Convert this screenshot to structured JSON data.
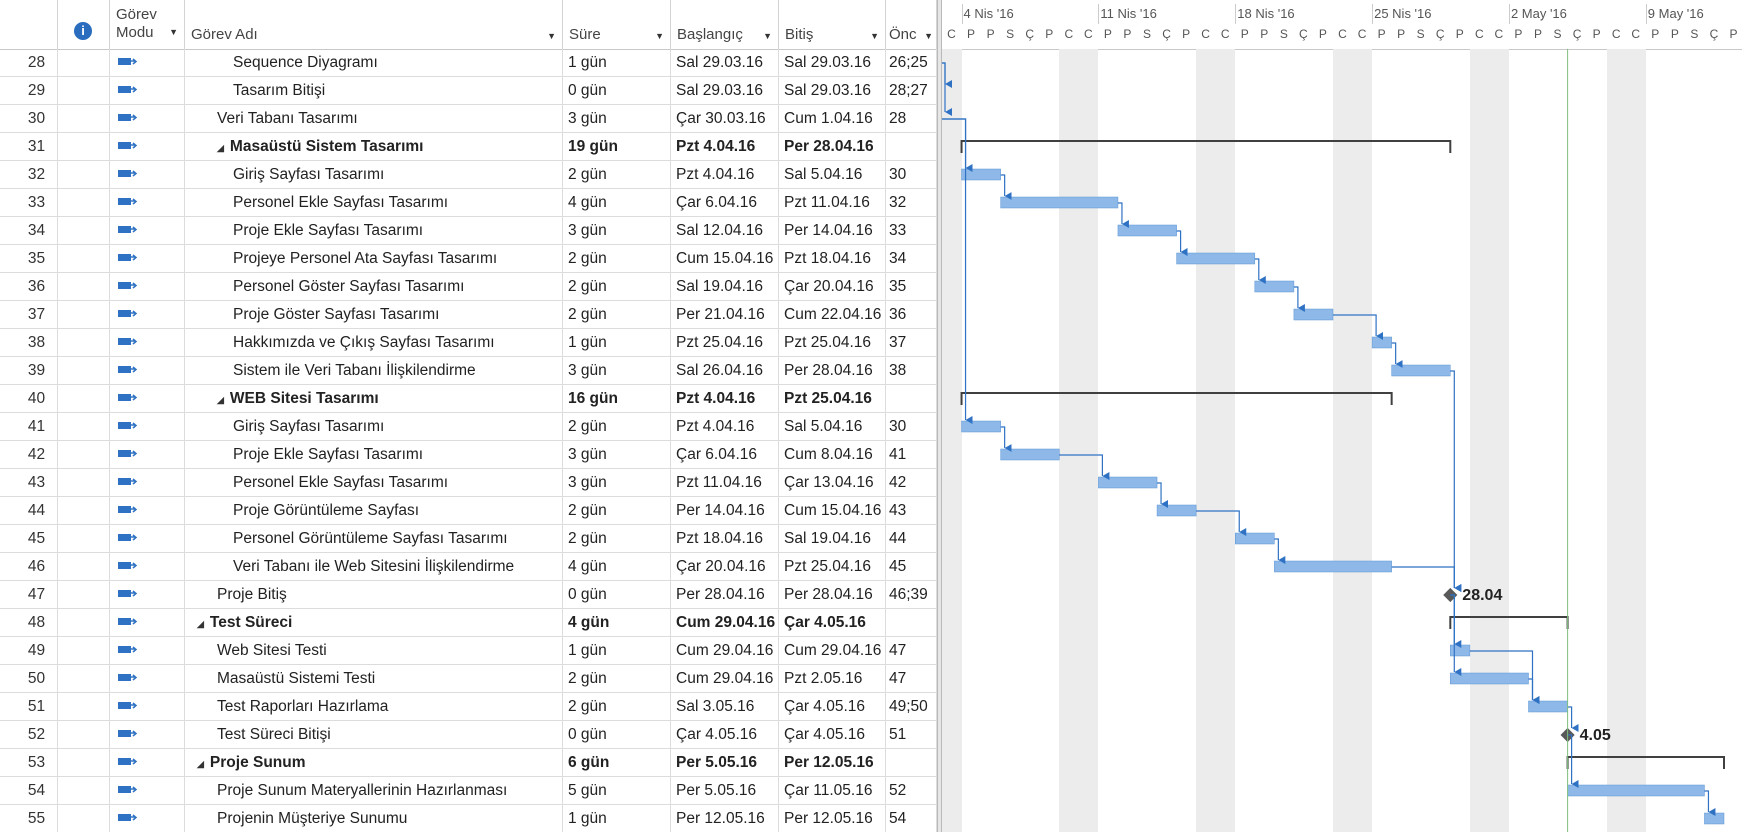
{
  "header": {
    "info_glyph": "i",
    "mode_line1": "Görev",
    "mode_line2": "Modu",
    "name": "Görev Adı",
    "duration": "Süre",
    "start": "Başlangıç",
    "finish": "Bitiş",
    "predecessors": "Önc"
  },
  "timescale": {
    "weeks": [
      "4 Nis '16",
      "11 Nis '16",
      "18 Nis '16",
      "25 Nis '16",
      "2 May '16",
      "9 May '16"
    ],
    "days": [
      "C",
      "P",
      "P",
      "S",
      "Ç",
      "P",
      "C",
      "C",
      "P",
      "P",
      "S",
      "Ç",
      "P",
      "C",
      "C",
      "P",
      "P",
      "S",
      "Ç",
      "P",
      "C",
      "C",
      "P",
      "P",
      "S",
      "Ç",
      "P",
      "C",
      "C",
      "P",
      "P",
      "S",
      "Ç",
      "P",
      "C",
      "C",
      "P",
      "P",
      "S",
      "Ç",
      "P",
      "C"
    ]
  },
  "tasks": [
    {
      "id": "28",
      "name": "Sequence Diyagramı",
      "level": 2,
      "summary": false,
      "duration": "1 gün",
      "start": "Sal 29.03.16",
      "finish": "Sal 29.03.16",
      "pred": "26;25"
    },
    {
      "id": "29",
      "name": "Tasarım Bitişi",
      "level": 2,
      "summary": false,
      "duration": "0 gün",
      "start": "Sal 29.03.16",
      "finish": "Sal 29.03.16",
      "pred": "28;27"
    },
    {
      "id": "30",
      "name": "Veri Tabanı Tasarımı",
      "level": 1,
      "summary": false,
      "duration": "3 gün",
      "start": "Çar 30.03.16",
      "finish": "Cum 1.04.16",
      "pred": "28"
    },
    {
      "id": "31",
      "name": "Masaüstü Sistem Tasarımı",
      "level": 1,
      "summary": true,
      "duration": "19 gün",
      "start": "Pzt 4.04.16",
      "finish": "Per 28.04.16",
      "pred": ""
    },
    {
      "id": "32",
      "name": "Giriş Sayfası Tasarımı",
      "level": 2,
      "summary": false,
      "duration": "2 gün",
      "start": "Pzt 4.04.16",
      "finish": "Sal 5.04.16",
      "pred": "30"
    },
    {
      "id": "33",
      "name": "Personel Ekle Sayfası Tasarımı",
      "level": 2,
      "summary": false,
      "duration": "4 gün",
      "start": "Çar 6.04.16",
      "finish": "Pzt 11.04.16",
      "pred": "32"
    },
    {
      "id": "34",
      "name": "Proje Ekle Sayfası Tasarımı",
      "level": 2,
      "summary": false,
      "duration": "3 gün",
      "start": "Sal 12.04.16",
      "finish": "Per 14.04.16",
      "pred": "33"
    },
    {
      "id": "35",
      "name": "Projeye Personel Ata Sayfası Tasarımı",
      "level": 2,
      "summary": false,
      "duration": "2 gün",
      "start": "Cum 15.04.16",
      "finish": "Pzt 18.04.16",
      "pred": "34"
    },
    {
      "id": "36",
      "name": "Personel Göster Sayfası Tasarımı",
      "level": 2,
      "summary": false,
      "duration": "2 gün",
      "start": "Sal 19.04.16",
      "finish": "Çar 20.04.16",
      "pred": "35"
    },
    {
      "id": "37",
      "name": "Proje Göster Sayfası Tasarımı",
      "level": 2,
      "summary": false,
      "duration": "2 gün",
      "start": "Per 21.04.16",
      "finish": "Cum 22.04.16",
      "pred": "36"
    },
    {
      "id": "38",
      "name": "Hakkımızda ve Çıkış Sayfası Tasarımı",
      "level": 2,
      "summary": false,
      "duration": "1 gün",
      "start": "Pzt 25.04.16",
      "finish": "Pzt 25.04.16",
      "pred": "37"
    },
    {
      "id": "39",
      "name": "Sistem ile Veri Tabanı İlişkilendirme",
      "level": 2,
      "summary": false,
      "duration": "3 gün",
      "start": "Sal 26.04.16",
      "finish": "Per 28.04.16",
      "pred": "38"
    },
    {
      "id": "40",
      "name": "WEB Sitesi Tasarımı",
      "level": 1,
      "summary": true,
      "duration": "16 gün",
      "start": "Pzt 4.04.16",
      "finish": "Pzt 25.04.16",
      "pred": ""
    },
    {
      "id": "41",
      "name": "Giriş Sayfası Tasarımı",
      "level": 2,
      "summary": false,
      "duration": "2 gün",
      "start": "Pzt 4.04.16",
      "finish": "Sal 5.04.16",
      "pred": "30"
    },
    {
      "id": "42",
      "name": "Proje Ekle Sayfası Tasarımı",
      "level": 2,
      "summary": false,
      "duration": "3 gün",
      "start": "Çar 6.04.16",
      "finish": "Cum 8.04.16",
      "pred": "41"
    },
    {
      "id": "43",
      "name": "Personel Ekle Sayfası Tasarımı",
      "level": 2,
      "summary": false,
      "duration": "3 gün",
      "start": "Pzt 11.04.16",
      "finish": "Çar 13.04.16",
      "pred": "42"
    },
    {
      "id": "44",
      "name": "Proje Görüntüleme Sayfası",
      "level": 2,
      "summary": false,
      "duration": "2 gün",
      "start": "Per 14.04.16",
      "finish": "Cum 15.04.16",
      "pred": "43"
    },
    {
      "id": "45",
      "name": "Personel Görüntüleme Sayfası Tasarımı",
      "level": 2,
      "summary": false,
      "duration": "2 gün",
      "start": "Pzt 18.04.16",
      "finish": "Sal 19.04.16",
      "pred": "44"
    },
    {
      "id": "46",
      "name": "Veri Tabanı ile Web Sitesini İlişkilendirme",
      "level": 2,
      "summary": false,
      "duration": "4 gün",
      "start": "Çar 20.04.16",
      "finish": "Pzt 25.04.16",
      "pred": "45"
    },
    {
      "id": "47",
      "name": "Proje Bitiş",
      "level": 1,
      "summary": false,
      "duration": "0 gün",
      "start": "Per 28.04.16",
      "finish": "Per 28.04.16",
      "pred": "46;39"
    },
    {
      "id": "48",
      "name": "Test Süreci",
      "level": 0,
      "summary": true,
      "duration": "4 gün",
      "start": "Cum 29.04.16",
      "finish": "Çar 4.05.16",
      "pred": ""
    },
    {
      "id": "49",
      "name": "Web Sitesi Testi",
      "level": 1,
      "summary": false,
      "duration": "1 gün",
      "start": "Cum 29.04.16",
      "finish": "Cum 29.04.16",
      "pred": "47"
    },
    {
      "id": "50",
      "name": "Masaüstü Sistemi Testi",
      "level": 1,
      "summary": false,
      "duration": "2 gün",
      "start": "Cum 29.04.16",
      "finish": "Pzt 2.05.16",
      "pred": "47"
    },
    {
      "id": "51",
      "name": "Test Raporları Hazırlama",
      "level": 1,
      "summary": false,
      "duration": "2 gün",
      "start": "Sal 3.05.16",
      "finish": "Çar 4.05.16",
      "pred": "49;50"
    },
    {
      "id": "52",
      "name": "Test Süreci Bitişi",
      "level": 1,
      "summary": false,
      "duration": "0 gün",
      "start": "Çar 4.05.16",
      "finish": "Çar 4.05.16",
      "pred": "51"
    },
    {
      "id": "53",
      "name": "Proje Sunum",
      "level": 0,
      "summary": true,
      "duration": "6 gün",
      "start": "Per 5.05.16",
      "finish": "Per 12.05.16",
      "pred": ""
    },
    {
      "id": "54",
      "name": "Proje Sunum Materyallerinin Hazırlanması",
      "level": 1,
      "summary": false,
      "duration": "5 gün",
      "start": "Per 5.05.16",
      "finish": "Çar 11.05.16",
      "pred": "52"
    },
    {
      "id": "55",
      "name": "Projenin Müşteriye Sunumu",
      "level": 1,
      "summary": false,
      "duration": "1 gün",
      "start": "Per 12.05.16",
      "finish": "Per 12.05.16",
      "pred": "54"
    }
  ],
  "milestone_labels": {
    "proje_bitis": "28.04",
    "test_bitis": "4.05"
  },
  "colors": {
    "bar": "#8db8e8",
    "bar_border": "#5b95d5",
    "link": "#2f72c4",
    "summary": "#404040",
    "milestone": "#595959",
    "today_line": "#7fbf7f"
  }
}
